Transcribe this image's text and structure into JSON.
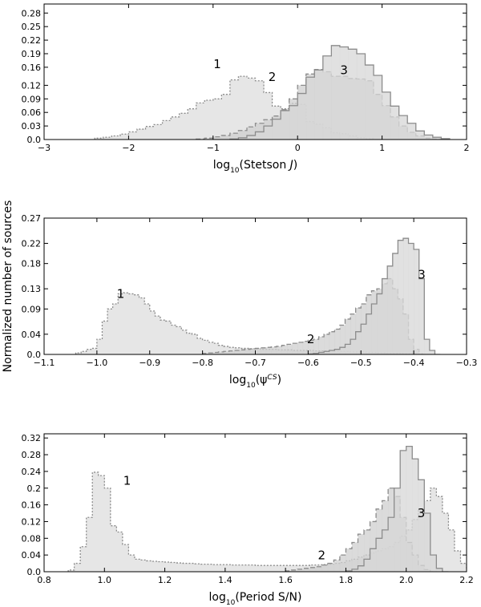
{
  "figure": {
    "ylabel": "Normalized number of sources"
  },
  "chart_data": [
    {
      "type": "histogram",
      "xlabel": "log10(Stetson J)",
      "xlabel_main": "log",
      "xlabel_sub": "10",
      "xlabel_rest": "(Stetson ",
      "xlabel_ital": "J",
      "xlabel_end": ")",
      "xlim": [
        -3,
        2
      ],
      "ylim": [
        0,
        0.3
      ],
      "xticks": [
        -3,
        -2,
        -1,
        0,
        1,
        2
      ],
      "xtick_labels": [
        "−3",
        "−2",
        "−1",
        "0",
        "1",
        "2"
      ],
      "yticks": [
        0.0,
        0.03,
        0.06,
        0.09,
        0.12,
        0.16,
        0.19,
        0.22,
        0.25,
        0.28
      ],
      "ytick_labels": [
        "0.0",
        "0.03",
        "0.06",
        "0.09",
        "0.12",
        "0.16",
        "0.19",
        "0.22",
        "0.25",
        "0.28"
      ],
      "series": [
        {
          "name": "1",
          "color": "#e6e6e6",
          "stroke": "#8c8c8c",
          "dash": "2,2",
          "label_at": [
            -0.95,
            0.158
          ],
          "edges_start": -2.4,
          "bin_width": 0.1,
          "values": [
            0.003,
            0.005,
            0.008,
            0.012,
            0.017,
            0.023,
            0.029,
            0.033,
            0.042,
            0.05,
            0.058,
            0.068,
            0.081,
            0.087,
            0.09,
            0.1,
            0.132,
            0.14,
            0.136,
            0.13,
            0.104,
            0.074,
            0.068,
            0.08,
            0.078,
            0.04,
            0.034,
            0.026,
            0.015,
            0.013,
            0.008,
            0.004,
            0.002
          ]
        },
        {
          "name": "2",
          "color": "#cfcfcf",
          "stroke": "#8c8c8c",
          "dash": "6,3",
          "label_at": [
            -0.3,
            0.13
          ],
          "edges_start": -1.2,
          "bin_width": 0.1,
          "values": [
            0.001,
            0.003,
            0.006,
            0.009,
            0.014,
            0.02,
            0.028,
            0.036,
            0.044,
            0.052,
            0.066,
            0.09,
            0.12,
            0.145,
            0.155,
            0.15,
            0.14,
            0.14,
            0.135,
            0.134,
            0.13,
            0.1,
            0.075,
            0.05,
            0.03,
            0.016,
            0.008,
            0.003,
            0.001
          ]
        },
        {
          "name": "3",
          "color": "#d7d7d7",
          "stroke": "#8c8c8c",
          "dash": "",
          "label_at": [
            0.55,
            0.145
          ],
          "edges_start": -0.8,
          "bin_width": 0.1,
          "values": [
            0.001,
            0.004,
            0.009,
            0.017,
            0.03,
            0.045,
            0.064,
            0.075,
            0.102,
            0.138,
            0.154,
            0.185,
            0.208,
            0.205,
            0.2,
            0.19,
            0.165,
            0.142,
            0.105,
            0.074,
            0.053,
            0.036,
            0.019,
            0.01,
            0.005,
            0.002
          ]
        }
      ]
    },
    {
      "type": "histogram",
      "xlabel": "log10(psi^CS)",
      "xlabel_main": "log",
      "xlabel_sub": "10",
      "xlabel_rest": "(ψ",
      "xlabel_sup": "CS",
      "xlabel_end": ")",
      "xlim": [
        -1.1,
        -0.3
      ],
      "ylim": [
        0,
        0.27
      ],
      "xticks": [
        -1.1,
        -1.0,
        -0.9,
        -0.8,
        -0.7,
        -0.6,
        -0.5,
        -0.4,
        -0.3
      ],
      "xtick_labels": [
        "−1.1",
        "−1.0",
        "−0.9",
        "−0.8",
        "−0.7",
        "−0.6",
        "−0.5",
        "−0.4",
        "−0.3"
      ],
      "yticks": [
        0.0,
        0.04,
        0.09,
        0.13,
        0.18,
        0.22,
        0.27
      ],
      "ytick_labels": [
        "0.0",
        "0.04",
        "0.09",
        "0.13",
        "0.18",
        "0.22",
        "0.27"
      ],
      "series": [
        {
          "name": "1",
          "color": "#e6e6e6",
          "stroke": "#8c8c8c",
          "dash": "2,2",
          "label_at": [
            -0.955,
            0.112
          ],
          "edges_start": -1.04,
          "bin_width": 0.01,
          "values": [
            0.003,
            0.006,
            0.01,
            0.012,
            0.03,
            0.066,
            0.09,
            0.1,
            0.12,
            0.122,
            0.12,
            0.118,
            0.112,
            0.1,
            0.086,
            0.076,
            0.068,
            0.066,
            0.058,
            0.055,
            0.048,
            0.042,
            0.04,
            0.032,
            0.028,
            0.024,
            0.022,
            0.018,
            0.016,
            0.014,
            0.013,
            0.012,
            0.012,
            0.011,
            0.011,
            0.01,
            0.01,
            0.01,
            0.009,
            0.009,
            0.009,
            0.008,
            0.008,
            0.008,
            0.008,
            0.007,
            0.007,
            0.007,
            0.007,
            0.006,
            0.006,
            0.006,
            0.005,
            0.005,
            0.005,
            0.004,
            0.004,
            0.003,
            0.003,
            0.002,
            0.002,
            0.002,
            0.001,
            0.001,
            0.001,
            0.001,
            0.0,
            0.0
          ]
        },
        {
          "name": "2",
          "color": "#cfcfcf",
          "stroke": "#8c8c8c",
          "dash": "6,3",
          "label_at": [
            -0.595,
            0.022
          ],
          "edges_start": -0.8,
          "bin_width": 0.01,
          "values": [
            0.002,
            0.003,
            0.004,
            0.005,
            0.006,
            0.007,
            0.008,
            0.009,
            0.01,
            0.011,
            0.012,
            0.013,
            0.014,
            0.015,
            0.016,
            0.018,
            0.02,
            0.022,
            0.024,
            0.026,
            0.028,
            0.03,
            0.035,
            0.04,
            0.045,
            0.05,
            0.058,
            0.07,
            0.08,
            0.092,
            0.1,
            0.118,
            0.126,
            0.13,
            0.14,
            0.15,
            0.13,
            0.11,
            0.08,
            0.03,
            0.01,
            0.0
          ]
        },
        {
          "name": "3",
          "color": "#d7d7d7",
          "stroke": "#8c8c8c",
          "dash": "",
          "label_at": [
            -0.385,
            0.15
          ],
          "edges_start": -0.6,
          "bin_width": 0.01,
          "values": [
            0.001,
            0.002,
            0.004,
            0.006,
            0.008,
            0.01,
            0.014,
            0.02,
            0.03,
            0.045,
            0.06,
            0.08,
            0.1,
            0.12,
            0.15,
            0.175,
            0.2,
            0.226,
            0.23,
            0.22,
            0.208,
            0.15,
            0.03,
            0.008,
            0.0
          ]
        }
      ]
    },
    {
      "type": "histogram",
      "xlabel": "log10(Period S/N)",
      "xlabel_main": "log",
      "xlabel_sub": "10",
      "xlabel_rest": "(Period S/N)",
      "xlim": [
        0.8,
        2.2
      ],
      "ylim": [
        0,
        0.33
      ],
      "xticks": [
        0.8,
        1.0,
        1.2,
        1.4,
        1.6,
        1.8,
        2.0,
        2.2
      ],
      "xtick_labels": [
        "0.8",
        "1.0",
        "1.2",
        "1.4",
        "1.6",
        "1.8",
        "2.0",
        "2.2"
      ],
      "yticks": [
        0.0,
        0.04,
        0.08,
        0.12,
        0.16,
        0.2,
        0.24,
        0.28,
        0.32
      ],
      "ytick_labels": [
        "0.0",
        "0.04",
        "0.08",
        "0.12",
        "0.16",
        "0.2",
        "0.24",
        "0.28",
        "0.32"
      ],
      "series": [
        {
          "name": "1",
          "color": "#e6e6e6",
          "stroke": "#8c8c8c",
          "dash": "2,2",
          "label_at": [
            1.075,
            0.208
          ],
          "edges_start": 0.88,
          "bin_width": 0.02,
          "values": [
            0.004,
            0.02,
            0.06,
            0.13,
            0.238,
            0.23,
            0.2,
            0.11,
            0.095,
            0.065,
            0.04,
            0.03,
            0.028,
            0.026,
            0.025,
            0.024,
            0.023,
            0.022,
            0.021,
            0.02,
            0.02,
            0.019,
            0.018,
            0.018,
            0.017,
            0.017,
            0.017,
            0.016,
            0.016,
            0.016,
            0.016,
            0.015,
            0.015,
            0.015,
            0.015,
            0.015,
            0.015,
            0.015,
            0.015,
            0.015,
            0.016,
            0.016,
            0.017,
            0.018,
            0.02,
            0.022,
            0.026,
            0.03,
            0.035,
            0.04,
            0.045,
            0.05,
            0.055,
            0.06,
            0.07,
            0.085,
            0.1,
            0.125,
            0.15,
            0.17,
            0.2,
            0.18,
            0.14,
            0.1,
            0.05,
            0.02,
            0.005,
            0.0
          ]
        },
        {
          "name": "2",
          "color": "#cfcfcf",
          "stroke": "#8c8c8c",
          "dash": "6,3",
          "label_at": [
            1.72,
            0.03
          ],
          "edges_start": 1.6,
          "bin_width": 0.02,
          "values": [
            0.002,
            0.004,
            0.006,
            0.008,
            0.01,
            0.012,
            0.016,
            0.02,
            0.028,
            0.04,
            0.055,
            0.07,
            0.09,
            0.1,
            0.12,
            0.15,
            0.17,
            0.2,
            0.18,
            0.13,
            0.07,
            0.04,
            0.015,
            0.005,
            0.0
          ]
        },
        {
          "name": "3",
          "color": "#d7d7d7",
          "stroke": "#8c8c8c",
          "dash": "",
          "label_at": [
            2.05,
            0.13
          ],
          "edges_start": 1.8,
          "bin_width": 0.02,
          "values": [
            0.002,
            0.006,
            0.014,
            0.03,
            0.055,
            0.08,
            0.1,
            0.13,
            0.2,
            0.29,
            0.3,
            0.27,
            0.22,
            0.14,
            0.04,
            0.008,
            0.0
          ]
        }
      ]
    }
  ]
}
